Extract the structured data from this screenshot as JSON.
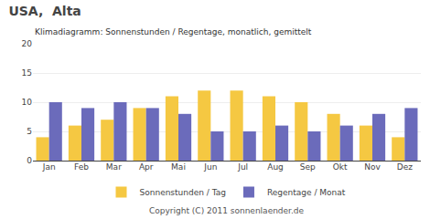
{
  "chart_data": {
    "type": "bar",
    "title": "USA,  Alta",
    "subtitle": "Klimadiagramm: Sonnenstunden / Regentage, monatlich, gemittelt",
    "categories": [
      "Jan",
      "Feb",
      "Mar",
      "Apr",
      "Mai",
      "Jun",
      "Jul",
      "Aug",
      "Sep",
      "Okt",
      "Nov",
      "Dez"
    ],
    "series": [
      {
        "name": "Sonnenstunden / Tag",
        "color": "#F5C842",
        "values": [
          4,
          6,
          7,
          9,
          11,
          12,
          12,
          11,
          10,
          8,
          6,
          4
        ]
      },
      {
        "name": "Regentage / Monat",
        "color": "#6B6BBB",
        "values": [
          10,
          9,
          10,
          9,
          8,
          5,
          5,
          6,
          5,
          6,
          8,
          9
        ]
      }
    ],
    "ylim": [
      0,
      20
    ],
    "yticks": [
      0,
      5,
      10,
      15,
      20
    ],
    "grid": true,
    "legend": "bottom",
    "annotations": [
      "Copyright (C) 2011 sonnenlaender.de"
    ]
  }
}
